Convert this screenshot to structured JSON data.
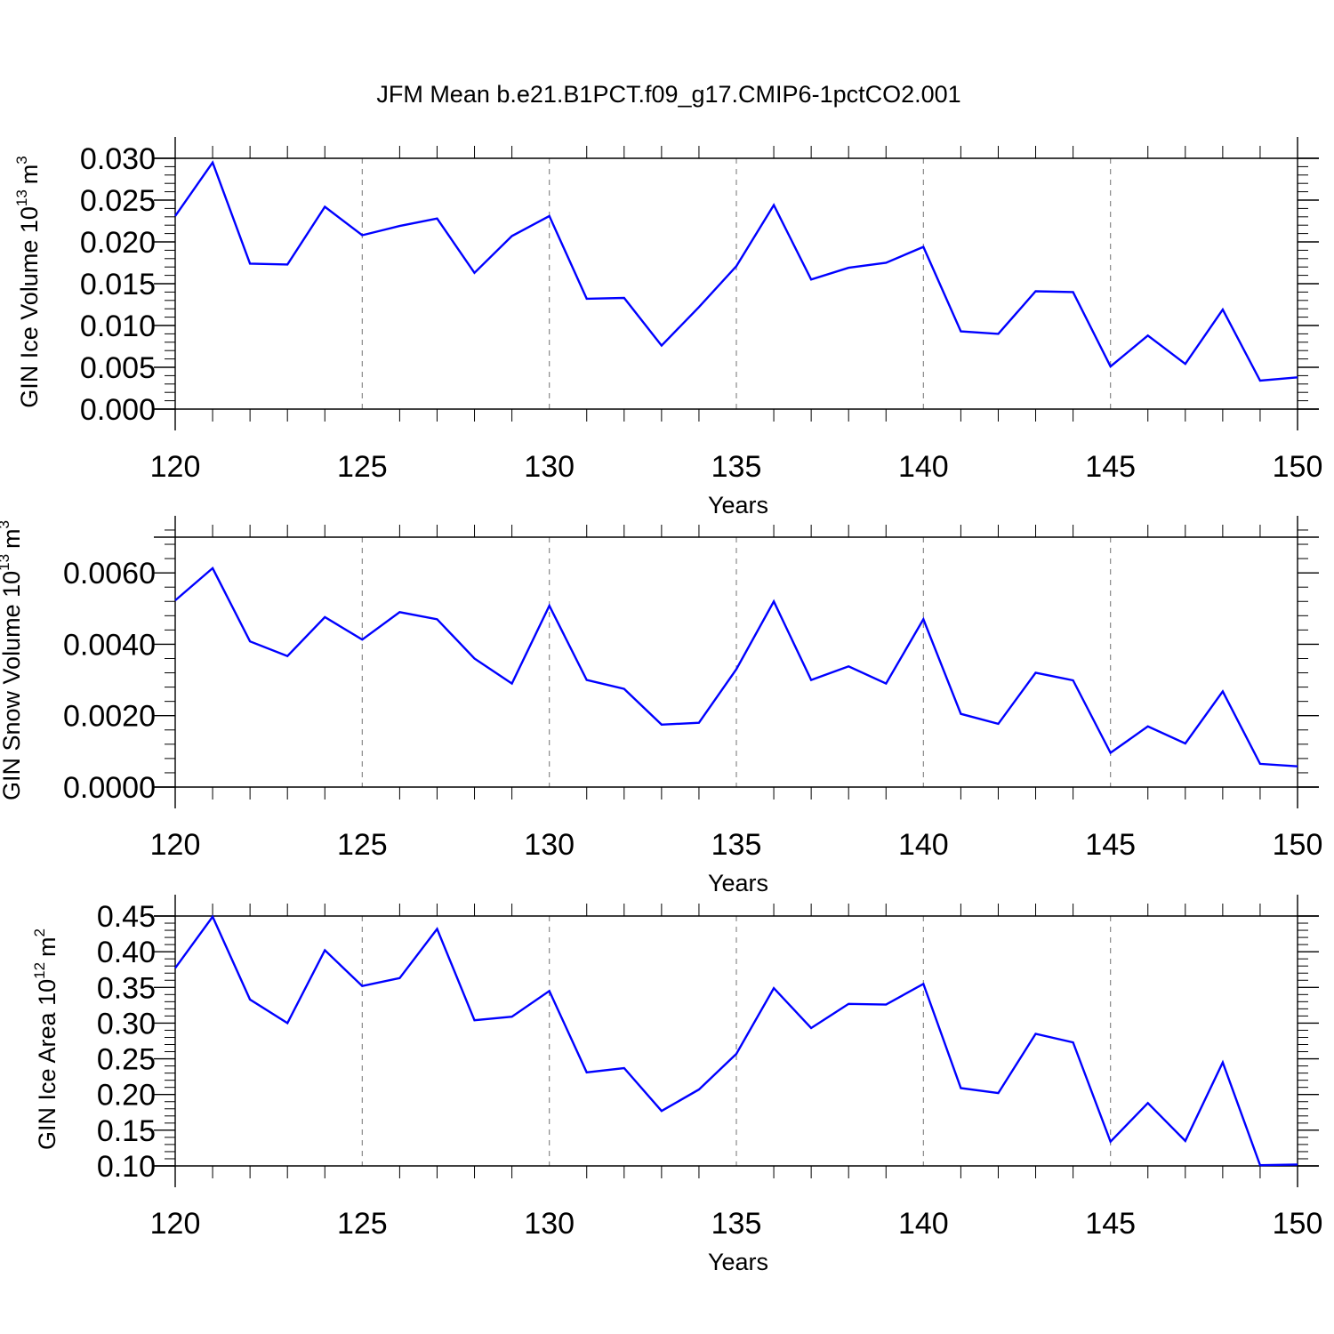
{
  "title": "JFM Mean b.e21.B1PCT.f09_g17.CMIP6-1pctCO2.001",
  "colors": {
    "line": "#0000ff",
    "axis": "#000000",
    "grid": "#888888"
  },
  "chart_data": [
    {
      "type": "line",
      "xlabel": "Years",
      "ylabel": {
        "text": "GIN Ice Volume 10",
        "exponent": "13",
        "unit": "m",
        "unit_exponent": "3"
      },
      "xlim": [
        120,
        150
      ],
      "ylim": [
        0,
        0.03
      ],
      "grid": "x-dashed",
      "x_ticks": [
        120,
        125,
        130,
        135,
        140,
        145,
        150
      ],
      "x_tick_labels": [
        "120",
        "125",
        "130",
        "135",
        "140",
        "145",
        "150"
      ],
      "y_ticks": [
        0,
        0.005,
        0.01,
        0.015,
        0.02,
        0.025,
        0.03
      ],
      "y_tick_labels": [
        "0.000",
        "0.005",
        "0.010",
        "0.015",
        "0.020",
        "0.025",
        "0.030"
      ],
      "y_minor_step": 0.001,
      "x": [
        120,
        121,
        122,
        123,
        124,
        125,
        126,
        127,
        128,
        129,
        130,
        131,
        132,
        133,
        134,
        135,
        136,
        137,
        138,
        139,
        140,
        141,
        142,
        143,
        144,
        145,
        146,
        147,
        148,
        149,
        150
      ],
      "values": [
        0.0231,
        0.0295,
        0.0174,
        0.0173,
        0.0242,
        0.0208,
        0.0219,
        0.0228,
        0.0163,
        0.0207,
        0.0231,
        0.0132,
        0.0133,
        0.0076,
        0.0122,
        0.0171,
        0.0244,
        0.0155,
        0.0169,
        0.0175,
        0.0194,
        0.0093,
        0.009,
        0.0141,
        0.014,
        0.0051,
        0.0088,
        0.0054,
        0.0119,
        0.0034,
        0.0038
      ]
    },
    {
      "type": "line",
      "xlabel": "Years",
      "ylabel": {
        "text": "GIN Snow Volume 10",
        "exponent": "13",
        "unit": "m",
        "unit_exponent": "3"
      },
      "xlim": [
        120,
        150
      ],
      "ylim": [
        0,
        0.007
      ],
      "grid": "x-dashed",
      "x_ticks": [
        120,
        125,
        130,
        135,
        140,
        145,
        150
      ],
      "x_tick_labels": [
        "120",
        "125",
        "130",
        "135",
        "140",
        "145",
        "150"
      ],
      "y_ticks": [
        0,
        0.002,
        0.004,
        0.006
      ],
      "y_tick_labels": [
        "0.0000",
        "0.0020",
        "0.0040",
        "0.0060"
      ],
      "y_minor_step": 0.0004,
      "x": [
        120,
        121,
        122,
        123,
        124,
        125,
        126,
        127,
        128,
        129,
        130,
        131,
        132,
        133,
        134,
        135,
        136,
        137,
        138,
        139,
        140,
        141,
        142,
        143,
        144,
        145,
        146,
        147,
        148,
        149,
        150
      ],
      "values": [
        0.00523,
        0.00613,
        0.00408,
        0.00367,
        0.00476,
        0.00413,
        0.0049,
        0.0047,
        0.0036,
        0.0029,
        0.00508,
        0.003,
        0.00275,
        0.00175,
        0.0018,
        0.0033,
        0.0052,
        0.003,
        0.00338,
        0.0029,
        0.0047,
        0.00205,
        0.00177,
        0.0032,
        0.00299,
        0.00096,
        0.0017,
        0.00122,
        0.00268,
        0.00065,
        0.00058
      ]
    },
    {
      "type": "line",
      "xlabel": "Years",
      "ylabel": {
        "text": "GIN Ice Area 10",
        "exponent": "12",
        "unit": "m",
        "unit_exponent": "2"
      },
      "xlim": [
        120,
        150
      ],
      "ylim": [
        0.1,
        0.45
      ],
      "grid": "x-dashed",
      "x_ticks": [
        120,
        125,
        130,
        135,
        140,
        145,
        150
      ],
      "x_tick_labels": [
        "120",
        "125",
        "130",
        "135",
        "140",
        "145",
        "150"
      ],
      "y_ticks": [
        0.1,
        0.15,
        0.2,
        0.25,
        0.3,
        0.35,
        0.4,
        0.45
      ],
      "y_tick_labels": [
        "0.10",
        "0.15",
        "0.20",
        "0.25",
        "0.30",
        "0.35",
        "0.40",
        "0.45"
      ],
      "y_minor_step": 0.01,
      "x": [
        120,
        121,
        122,
        123,
        124,
        125,
        126,
        127,
        128,
        129,
        130,
        131,
        132,
        133,
        134,
        135,
        136,
        137,
        138,
        139,
        140,
        141,
        142,
        143,
        144,
        145,
        146,
        147,
        148,
        149,
        150
      ],
      "values": [
        0.377,
        0.449,
        0.333,
        0.3,
        0.402,
        0.352,
        0.363,
        0.432,
        0.304,
        0.309,
        0.345,
        0.231,
        0.237,
        0.177,
        0.207,
        0.257,
        0.349,
        0.293,
        0.327,
        0.326,
        0.355,
        0.209,
        0.202,
        0.285,
        0.273,
        0.134,
        0.188,
        0.135,
        0.245,
        0.101,
        0.102
      ]
    }
  ]
}
